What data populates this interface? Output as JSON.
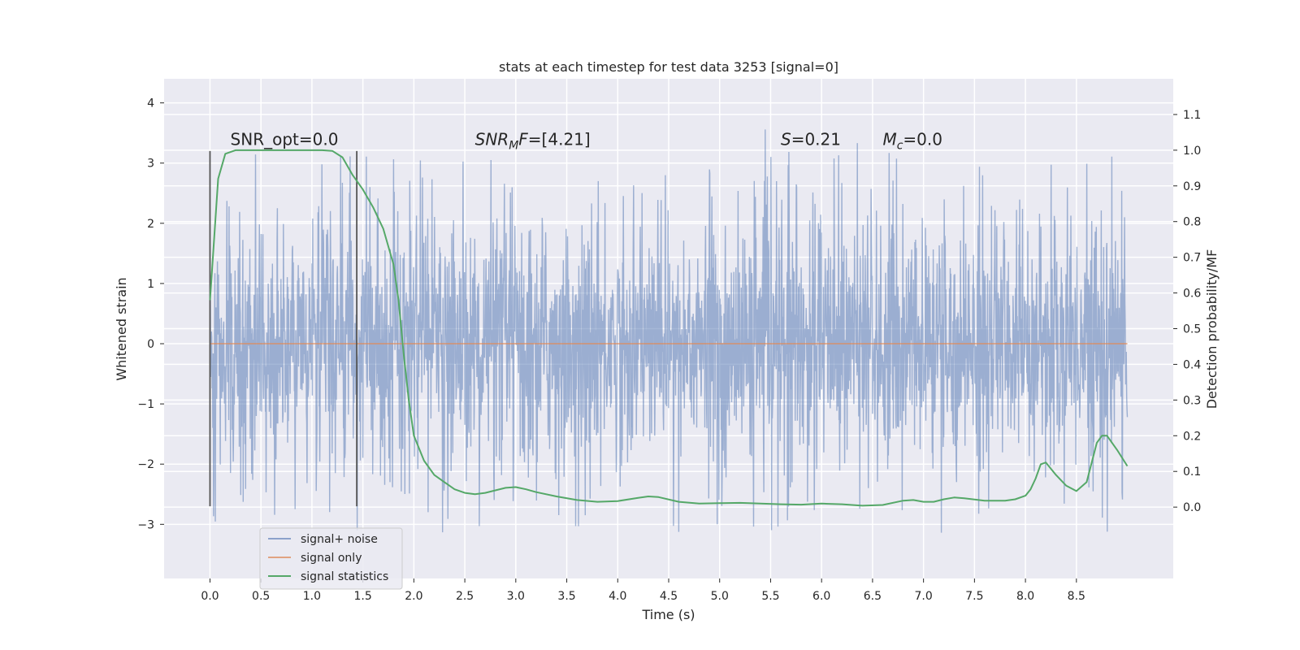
{
  "chart_data": {
    "type": "line",
    "title": "stats at each timestep for test data 3253 [signal=0]",
    "xlabel": "Time (s)",
    "ylabel": "Whitened strain",
    "y2label": "Detection probability/MF",
    "xlim": [
      -0.45,
      9.45
    ],
    "ylim": [
      -3.9,
      4.4
    ],
    "y2lim": [
      -0.2,
      1.2
    ],
    "x_ticks": [
      0.0,
      0.5,
      1.0,
      1.5,
      2.0,
      2.5,
      3.0,
      3.5,
      4.0,
      4.5,
      5.0,
      5.5,
      6.0,
      6.5,
      7.0,
      7.5,
      8.0,
      8.5
    ],
    "x_tick_labels": [
      "0.0",
      "0.5",
      "1.0",
      "1.5",
      "2.0",
      "2.5",
      "3.0",
      "3.5",
      "4.0",
      "4.5",
      "5.0",
      "5.5",
      "6.0",
      "6.5",
      "7.0",
      "7.5",
      "8.0",
      "8.5"
    ],
    "y_ticks": [
      4,
      3,
      2,
      1,
      0,
      -1,
      -2,
      -3
    ],
    "y_tick_labels": [
      "4",
      "3",
      "2",
      "1",
      "0",
      "−1",
      "−2",
      "−3"
    ],
    "y2_ticks": [
      1.1,
      1.0,
      0.9,
      0.8,
      0.7,
      0.6,
      0.5,
      0.4,
      0.3,
      0.2,
      0.1,
      0.0
    ],
    "y2_tick_labels": [
      "1.1",
      "1.0",
      "0.9",
      "0.8",
      "0.7",
      "0.6",
      "0.5",
      "0.4",
      "0.3",
      "0.2",
      "0.1",
      "0.0"
    ],
    "grid": true,
    "legend_position": "bottom-left",
    "series": [
      {
        "name": "signal+ noise",
        "axis": "left",
        "color": "#4c72b0",
        "style": "dense noise trace",
        "t_range": [
          0.0,
          9.0
        ],
        "typical_amplitude": 1.5,
        "peak_range": [
          -3.5,
          4.0
        ]
      },
      {
        "name": "signal only",
        "axis": "left",
        "color": "#dd8452",
        "x": [
          0.0,
          9.0
        ],
        "y": [
          0.0,
          0.0
        ]
      },
      {
        "name": "signal statistics",
        "axis": "right",
        "color": "#55a868",
        "x": [
          0.0,
          0.08,
          0.15,
          0.25,
          0.4,
          0.6,
          0.8,
          1.0,
          1.1,
          1.2,
          1.3,
          1.4,
          1.5,
          1.6,
          1.7,
          1.8,
          1.85,
          1.9,
          1.95,
          2.0,
          2.1,
          2.2,
          2.3,
          2.4,
          2.5,
          2.6,
          2.7,
          2.8,
          2.9,
          3.0,
          3.1,
          3.2,
          3.4,
          3.6,
          3.8,
          4.0,
          4.2,
          4.3,
          4.4,
          4.6,
          4.8,
          5.0,
          5.2,
          5.4,
          5.6,
          5.8,
          6.0,
          6.2,
          6.4,
          6.6,
          6.8,
          6.9,
          7.0,
          7.1,
          7.2,
          7.3,
          7.4,
          7.6,
          7.8,
          7.9,
          8.0,
          8.05,
          8.1,
          8.15,
          8.2,
          8.3,
          8.4,
          8.5,
          8.6,
          8.7,
          8.75,
          8.8,
          8.9,
          9.0
        ],
        "y": [
          0.58,
          0.92,
          0.99,
          1.0,
          1.0,
          1.0,
          1.0,
          1.0,
          1.0,
          0.998,
          0.98,
          0.93,
          0.89,
          0.84,
          0.78,
          0.68,
          0.58,
          0.43,
          0.3,
          0.2,
          0.13,
          0.09,
          0.07,
          0.05,
          0.04,
          0.036,
          0.04,
          0.047,
          0.054,
          0.056,
          0.05,
          0.042,
          0.03,
          0.02,
          0.015,
          0.017,
          0.026,
          0.03,
          0.028,
          0.015,
          0.01,
          0.011,
          0.012,
          0.01,
          0.008,
          0.007,
          0.01,
          0.008,
          0.004,
          0.006,
          0.018,
          0.02,
          0.015,
          0.015,
          0.022,
          0.027,
          0.025,
          0.018,
          0.018,
          0.022,
          0.032,
          0.05,
          0.08,
          0.12,
          0.125,
          0.09,
          0.06,
          0.045,
          0.07,
          0.18,
          0.2,
          0.2,
          0.16,
          0.115
        ]
      }
    ],
    "vlines": [
      {
        "x": 0.0,
        "y_range": [
          -2.7,
          3.2
        ],
        "color": "#555555"
      },
      {
        "x": 1.44,
        "y_range": [
          -2.7,
          3.2
        ],
        "color": "#555555"
      }
    ],
    "annotations": [
      {
        "parts": [
          {
            "text": "SNR_opt=0.0"
          }
        ],
        "x": 0.2,
        "y": 3.3
      },
      {
        "parts": [
          {
            "text": "SNR",
            "italic": true
          },
          {
            "text": "M",
            "italic": true,
            "sub": true
          },
          {
            "text": "F",
            "italic": true
          },
          {
            "text": "=[4.21]"
          }
        ],
        "x": 2.6,
        "y": 3.3
      },
      {
        "parts": [
          {
            "text": "S",
            "italic": true
          },
          {
            "text": "=0.21"
          }
        ],
        "x": 5.6,
        "y": 3.3
      },
      {
        "parts": [
          {
            "text": "M",
            "italic": true
          },
          {
            "text": "c",
            "italic": true,
            "sub": true
          },
          {
            "text": "=0.0"
          }
        ],
        "x": 6.6,
        "y": 3.3
      }
    ]
  }
}
